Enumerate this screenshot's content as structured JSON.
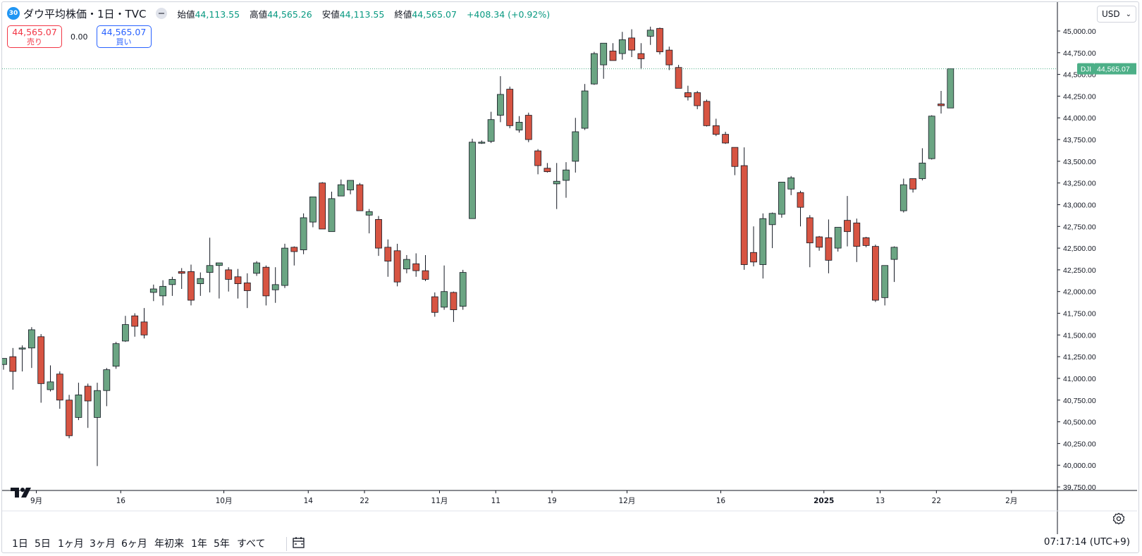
{
  "header": {
    "badge": "30",
    "title": "ダウ平均株価・1日・TVC",
    "open_label": "始値",
    "open": "44,113.55",
    "high_label": "高値",
    "high": "44,565.26",
    "low_label": "安値",
    "low": "44,113.55",
    "close_label": "終値",
    "close": "44,565.07",
    "change": "+408.34 (+0.92%)"
  },
  "trade": {
    "sell_price": "44,565.07",
    "sell_label": "売り",
    "spread": "0.00",
    "buy_price": "44,565.07",
    "buy_label": "買い"
  },
  "currency": "USD",
  "price_tag": {
    "symbol": "DJI",
    "value": "44,565.07"
  },
  "bottom": {
    "timeframes": [
      "1日",
      "5日",
      "1ヶ月",
      "3ヶ月",
      "6ヶ月",
      "年初来",
      "1年",
      "5年",
      "すべて"
    ],
    "clock": "07:17:14 (UTC+9)"
  },
  "colors": {
    "up": "#6ba583",
    "down": "#d75442",
    "grid": "#f0f3fa",
    "last_price": "#4caf87"
  },
  "icons": [
    "tradingview-logo-icon",
    "calendar-range-icon",
    "settings-icon",
    "chevron-down-icon",
    "collapse-icon"
  ],
  "chart_data": {
    "type": "candlestick",
    "series": [
      {
        "name": "DJI"
      }
    ],
    "y_ticks": [
      45000,
      44750,
      44500,
      44250,
      44000,
      43750,
      43500,
      43250,
      43000,
      42750,
      42500,
      42250,
      42000,
      41750,
      41500,
      41250,
      41000,
      40750,
      40500,
      40250,
      40000,
      39750
    ],
    "y_tick_labels": [
      "45,000.00",
      "44,750.00",
      "44,500.00",
      "44,250.00",
      "44,000.00",
      "43,750.00",
      "43,500.00",
      "43,250.00",
      "43,000.00",
      "42,750.00",
      "42,500.00",
      "42,250.00",
      "42,000.00",
      "41,750.00",
      "41,500.00",
      "41,250.00",
      "41,000.00",
      "40,750.00",
      "40,500.00",
      "40,250.00",
      "40,000.00",
      "39,750.00"
    ],
    "ylim": [
      39700,
      45160
    ],
    "x_ticks": [
      {
        "label": "9月",
        "index": 3.5
      },
      {
        "label": "16",
        "index": 12.5
      },
      {
        "label": "10月",
        "index": 23.5
      },
      {
        "label": "14",
        "index": 32.5
      },
      {
        "label": "22",
        "index": 38.5
      },
      {
        "label": "11月",
        "index": 46.5
      },
      {
        "label": "11",
        "index": 52.5
      },
      {
        "label": "19",
        "index": 58.5
      },
      {
        "label": "12月",
        "index": 66.5
      },
      {
        "label": "16",
        "index": 76.5
      },
      {
        "label": "2025",
        "index": 87.5
      },
      {
        "label": "13",
        "index": 93.5
      },
      {
        "label": "22",
        "index": 99.5
      },
      {
        "label": "2月",
        "index": 107.5
      }
    ],
    "candles": [
      {
        "o": 41160,
        "h": 41230,
        "l": 41100,
        "c": 41230
      },
      {
        "o": 41250,
        "h": 41350,
        "l": 40870,
        "c": 41080
      },
      {
        "o": 41350,
        "h": 41380,
        "l": 41080,
        "c": 41350
      },
      {
        "o": 41350,
        "h": 41590,
        "l": 41120,
        "c": 41560
      },
      {
        "o": 41480,
        "h": 41510,
        "l": 40720,
        "c": 40940
      },
      {
        "o": 40870,
        "h": 41150,
        "l": 40850,
        "c": 40960
      },
      {
        "o": 41050,
        "h": 41080,
        "l": 40650,
        "c": 40750
      },
      {
        "o": 40750,
        "h": 40810,
        "l": 40310,
        "c": 40340
      },
      {
        "o": 40550,
        "h": 40950,
        "l": 40520,
        "c": 40810
      },
      {
        "o": 40910,
        "h": 40940,
        "l": 40430,
        "c": 40740
      },
      {
        "o": 40550,
        "h": 40950,
        "l": 39990,
        "c": 40860
      },
      {
        "o": 40860,
        "h": 41120,
        "l": 40680,
        "c": 41100
      },
      {
        "o": 41140,
        "h": 41420,
        "l": 41110,
        "c": 41400
      },
      {
        "o": 41430,
        "h": 41720,
        "l": 41420,
        "c": 41620
      },
      {
        "o": 41720,
        "h": 41750,
        "l": 41480,
        "c": 41600
      },
      {
        "o": 41650,
        "h": 41810,
        "l": 41460,
        "c": 41500
      },
      {
        "o": 41990,
        "h": 42080,
        "l": 41890,
        "c": 42030
      },
      {
        "o": 41950,
        "h": 42130,
        "l": 41840,
        "c": 42060
      },
      {
        "o": 42080,
        "h": 42170,
        "l": 41950,
        "c": 42140
      },
      {
        "o": 42230,
        "h": 42270,
        "l": 42030,
        "c": 42210
      },
      {
        "o": 42230,
        "h": 42310,
        "l": 41840,
        "c": 41900
      },
      {
        "o": 42090,
        "h": 42220,
        "l": 41950,
        "c": 42150
      },
      {
        "o": 42220,
        "h": 42620,
        "l": 41990,
        "c": 42300
      },
      {
        "o": 42300,
        "h": 42330,
        "l": 41920,
        "c": 42330
      },
      {
        "o": 42250,
        "h": 42280,
        "l": 42000,
        "c": 42140
      },
      {
        "o": 42170,
        "h": 42260,
        "l": 41920,
        "c": 42090
      },
      {
        "o": 42100,
        "h": 42210,
        "l": 41810,
        "c": 42010
      },
      {
        "o": 42210,
        "h": 42350,
        "l": 42180,
        "c": 42330
      },
      {
        "o": 42280,
        "h": 42300,
        "l": 41840,
        "c": 41950
      },
      {
        "o": 42020,
        "h": 42280,
        "l": 41870,
        "c": 42080
      },
      {
        "o": 42070,
        "h": 42550,
        "l": 42040,
        "c": 42500
      },
      {
        "o": 42510,
        "h": 42520,
        "l": 42300,
        "c": 42460
      },
      {
        "o": 42480,
        "h": 42900,
        "l": 42430,
        "c": 42850
      },
      {
        "o": 42800,
        "h": 43040,
        "l": 42740,
        "c": 43090
      },
      {
        "o": 43250,
        "h": 43260,
        "l": 42720,
        "c": 42720
      },
      {
        "o": 42690,
        "h": 43150,
        "l": 42710,
        "c": 43070
      },
      {
        "o": 43100,
        "h": 43290,
        "l": 43100,
        "c": 43230
      },
      {
        "o": 43170,
        "h": 43260,
        "l": 43120,
        "c": 43280
      },
      {
        "o": 43230,
        "h": 43250,
        "l": 42950,
        "c": 42930
      },
      {
        "o": 42880,
        "h": 42950,
        "l": 42670,
        "c": 42920
      },
      {
        "o": 42830,
        "h": 42870,
        "l": 42410,
        "c": 42500
      },
      {
        "o": 42510,
        "h": 42600,
        "l": 42170,
        "c": 42350
      },
      {
        "o": 42470,
        "h": 42550,
        "l": 42060,
        "c": 42110
      },
      {
        "o": 42260,
        "h": 42420,
        "l": 42210,
        "c": 42370
      },
      {
        "o": 42320,
        "h": 42440,
        "l": 42170,
        "c": 42240
      },
      {
        "o": 42240,
        "h": 42420,
        "l": 42120,
        "c": 42140
      },
      {
        "o": 41940,
        "h": 41990,
        "l": 41710,
        "c": 41760
      },
      {
        "o": 41820,
        "h": 42300,
        "l": 41790,
        "c": 42000
      },
      {
        "o": 41990,
        "h": 42000,
        "l": 41650,
        "c": 41790
      },
      {
        "o": 41830,
        "h": 42250,
        "l": 41790,
        "c": 42220
      },
      {
        "o": 42840,
        "h": 43760,
        "l": 42840,
        "c": 43720
      },
      {
        "o": 43720,
        "h": 43740,
        "l": 43700,
        "c": 43720
      },
      {
        "o": 43730,
        "h": 44070,
        "l": 43710,
        "c": 43980
      },
      {
        "o": 44030,
        "h": 44480,
        "l": 43950,
        "c": 44270
      },
      {
        "o": 44330,
        "h": 44360,
        "l": 43880,
        "c": 43910
      },
      {
        "o": 43860,
        "h": 44020,
        "l": 43830,
        "c": 43950
      },
      {
        "o": 44030,
        "h": 44060,
        "l": 43720,
        "c": 43750
      },
      {
        "o": 43620,
        "h": 43640,
        "l": 43350,
        "c": 43450
      },
      {
        "o": 43420,
        "h": 43480,
        "l": 43370,
        "c": 43380
      },
      {
        "o": 43240,
        "h": 43480,
        "l": 42950,
        "c": 43270
      },
      {
        "o": 43280,
        "h": 43490,
        "l": 43080,
        "c": 43400
      },
      {
        "o": 43500,
        "h": 44000,
        "l": 43370,
        "c": 43840
      },
      {
        "o": 43880,
        "h": 44390,
        "l": 43860,
        "c": 44310
      },
      {
        "o": 44390,
        "h": 44760,
        "l": 44380,
        "c": 44740
      },
      {
        "o": 44610,
        "h": 44840,
        "l": 44450,
        "c": 44860
      },
      {
        "o": 44770,
        "h": 44860,
        "l": 44660,
        "c": 44660
      },
      {
        "o": 44740,
        "h": 44990,
        "l": 44670,
        "c": 44900
      },
      {
        "o": 44920,
        "h": 45020,
        "l": 44700,
        "c": 44780
      },
      {
        "o": 44740,
        "h": 44860,
        "l": 44560,
        "c": 44680
      },
      {
        "o": 44940,
        "h": 45050,
        "l": 44840,
        "c": 45010
      },
      {
        "o": 45030,
        "h": 45040,
        "l": 44730,
        "c": 44760
      },
      {
        "o": 44780,
        "h": 44820,
        "l": 44550,
        "c": 44610
      },
      {
        "o": 44580,
        "h": 44610,
        "l": 44360,
        "c": 44340
      },
      {
        "o": 44290,
        "h": 44370,
        "l": 44200,
        "c": 44240
      },
      {
        "o": 44290,
        "h": 44310,
        "l": 44100,
        "c": 44140
      },
      {
        "o": 44190,
        "h": 44210,
        "l": 43900,
        "c": 43910
      },
      {
        "o": 43910,
        "h": 43990,
        "l": 43790,
        "c": 43810
      },
      {
        "o": 43810,
        "h": 43840,
        "l": 43700,
        "c": 43710
      },
      {
        "o": 43660,
        "h": 43610,
        "l": 43340,
        "c": 43440
      },
      {
        "o": 43450,
        "h": 43660,
        "l": 42250,
        "c": 42310
      },
      {
        "o": 42450,
        "h": 42750,
        "l": 42290,
        "c": 42340
      },
      {
        "o": 42310,
        "h": 42900,
        "l": 42150,
        "c": 42840
      },
      {
        "o": 42770,
        "h": 42910,
        "l": 42500,
        "c": 42900
      },
      {
        "o": 42890,
        "h": 43260,
        "l": 42850,
        "c": 43260
      },
      {
        "o": 43180,
        "h": 43330,
        "l": 43110,
        "c": 43310
      },
      {
        "o": 43140,
        "h": 43160,
        "l": 42750,
        "c": 42970
      },
      {
        "o": 42850,
        "h": 42880,
        "l": 42280,
        "c": 42560
      },
      {
        "o": 42630,
        "h": 42640,
        "l": 42470,
        "c": 42510
      },
      {
        "o": 42620,
        "h": 42830,
        "l": 42210,
        "c": 42360
      },
      {
        "o": 42500,
        "h": 42740,
        "l": 42460,
        "c": 42740
      },
      {
        "o": 42820,
        "h": 43100,
        "l": 42520,
        "c": 42690
      },
      {
        "o": 42790,
        "h": 42840,
        "l": 42340,
        "c": 42520
      },
      {
        "o": 42620,
        "h": 42630,
        "l": 42510,
        "c": 42530
      },
      {
        "o": 42520,
        "h": 42540,
        "l": 41880,
        "c": 41900
      },
      {
        "o": 41930,
        "h": 42300,
        "l": 41840,
        "c": 42300
      },
      {
        "o": 42370,
        "h": 42520,
        "l": 42110,
        "c": 42510
      },
      {
        "o": 42930,
        "h": 43300,
        "l": 42910,
        "c": 43230
      },
      {
        "o": 43300,
        "h": 43300,
        "l": 43140,
        "c": 43180
      },
      {
        "o": 43300,
        "h": 43650,
        "l": 43280,
        "c": 43480
      },
      {
        "o": 43530,
        "h": 44030,
        "l": 43520,
        "c": 44020
      },
      {
        "o": 44160,
        "h": 44310,
        "l": 44050,
        "c": 44140
      },
      {
        "o": 44113.55,
        "h": 44565.26,
        "l": 44113.55,
        "c": 44565.07
      }
    ]
  }
}
